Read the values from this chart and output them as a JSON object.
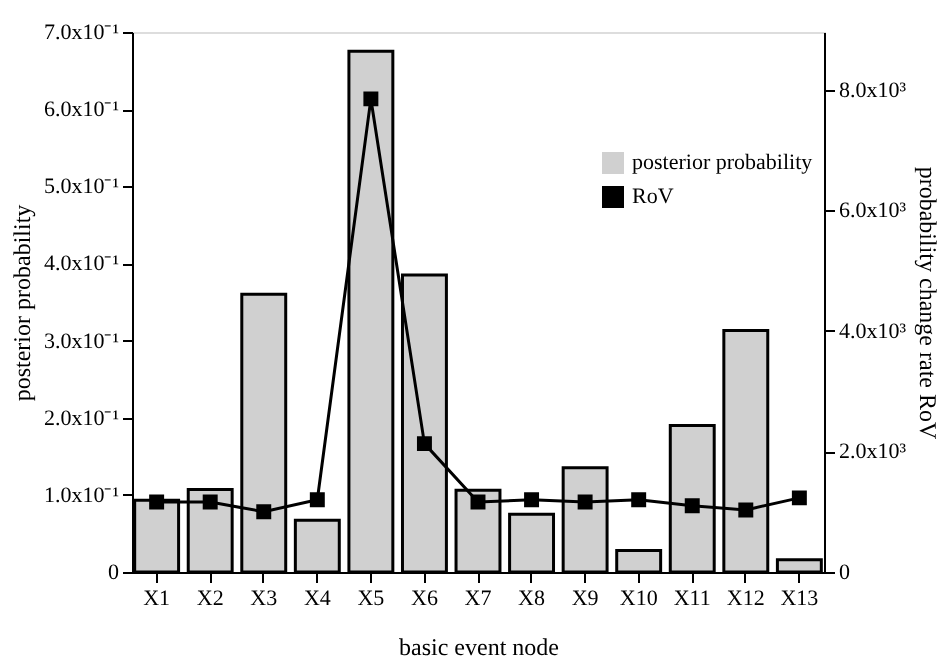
{
  "chart_data": {
    "type": "bar",
    "xlabel": "basic event node",
    "ylabel": "posterior probability",
    "y2label": "probability change rate  RoV",
    "categories": [
      "X1",
      "X2",
      "X3",
      "X4",
      "X5",
      "X6",
      "X7",
      "X8",
      "X9",
      "X10",
      "X11",
      "X12",
      "X13"
    ],
    "series": [
      {
        "name": "posterior probability",
        "color": "#d0d0d0",
        "values": [
          0.093,
          0.107,
          0.36,
          0.067,
          0.675,
          0.385,
          0.106,
          0.075,
          0.135,
          0.028,
          0.19,
          0.313,
          0.016
        ]
      },
      {
        "name": "RoV",
        "type": "line",
        "axis": "y2",
        "color": "#000000",
        "marker": "square",
        "line_style": "solid",
        "values": [
          1160,
          1160,
          1000,
          1200,
          7850,
          2130,
          1160,
          1200,
          1160,
          1200,
          1100,
          1030,
          1230
        ]
      }
    ],
    "ylim": [
      0,
      0.7
    ],
    "yticks": [
      0,
      {
        "value": 0.1,
        "label": "1.0x10⁻¹"
      },
      {
        "value": 0.2,
        "label": "2.0x10⁻¹"
      },
      {
        "value": 0.3,
        "label": "3.0x10⁻¹"
      },
      {
        "value": 0.4,
        "label": "4.0x10⁻¹"
      },
      {
        "value": 0.5,
        "label": "5.0x10⁻¹"
      },
      {
        "value": 0.6,
        "label": "6.0x10⁻¹"
      },
      {
        "value": 0.7,
        "label": "7.0x10⁻¹"
      }
    ],
    "y2lim": [
      0,
      8960
    ],
    "y2ticks": [
      0,
      {
        "value": 2000,
        "label": "2.0x10³"
      },
      {
        "value": 4000,
        "label": "4.0x10³"
      },
      {
        "value": 6000,
        "label": "6.0x10³"
      },
      {
        "value": 8000,
        "label": "8.0x10³"
      }
    ],
    "legend": "top right",
    "grid": false
  }
}
